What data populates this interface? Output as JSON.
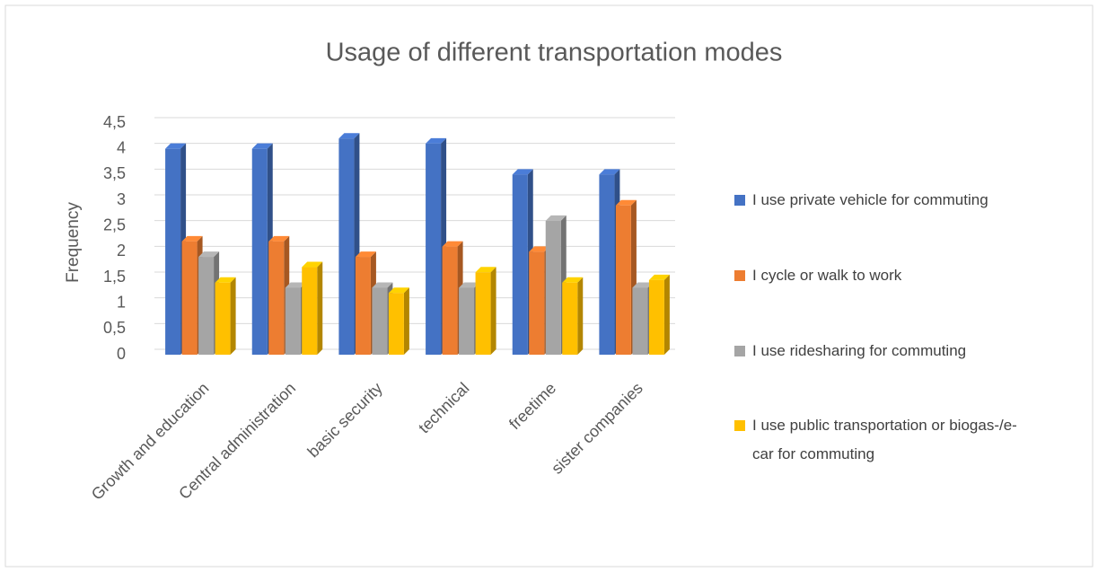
{
  "chart_data": {
    "type": "bar3d",
    "title": "Usage of different transportation modes",
    "y_label": "Frequency",
    "categories": [
      "Growth and education",
      "Central administration",
      "basic security",
      "technical",
      "freetime",
      "sister companies"
    ],
    "series": [
      {
        "name": "I use private vehicle for commuting",
        "color": "#4472c4",
        "values": [
          4.0,
          4.0,
          4.2,
          4.1,
          3.5,
          3.5
        ]
      },
      {
        "name": "I cycle or walk to work",
        "color": "#ed7d31",
        "values": [
          2.2,
          2.2,
          1.9,
          2.1,
          2.0,
          2.9
        ]
      },
      {
        "name": "I use ridesharing for commuting",
        "color": "#a5a5a5",
        "values": [
          1.9,
          1.3,
          1.3,
          1.3,
          2.6,
          1.3
        ]
      },
      {
        "name": "I use public transportation or biogas-/e-car for commuting",
        "color": "#ffc000",
        "values": [
          1.4,
          1.7,
          1.2,
          1.6,
          1.4,
          1.45
        ]
      }
    ],
    "ylim": [
      0,
      4.5
    ],
    "yticks": [
      0,
      {
        "value": 0.5,
        "label": "0,5"
      },
      1,
      {
        "value": 1.5,
        "label": "1,5"
      },
      2,
      {
        "value": 2.5,
        "label": "2,5"
      },
      3,
      {
        "value": 3.5,
        "label": "3,5"
      },
      4,
      {
        "value": 4.5,
        "label": "4,5"
      }
    ],
    "grid": true,
    "legend": "right"
  }
}
